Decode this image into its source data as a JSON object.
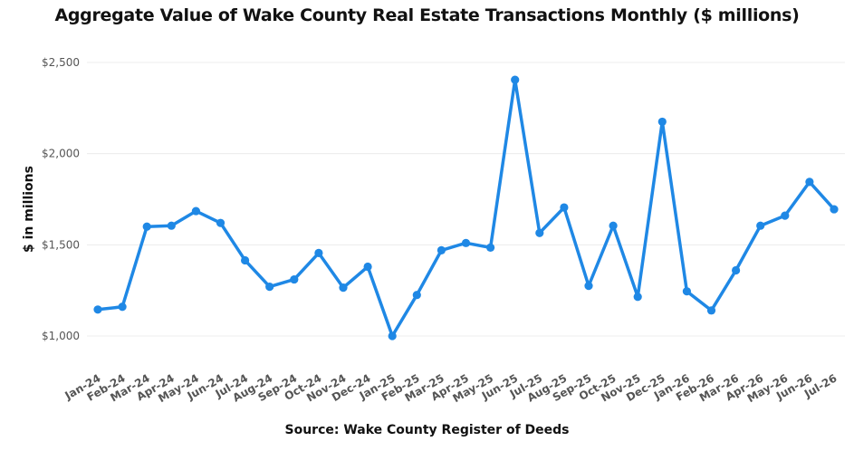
{
  "chart_data": {
    "type": "line",
    "title": "Aggregate Value of Wake County Real Estate Transactions Monthly ($ millions)",
    "ylabel": "$ in millions",
    "xlabel": "Source: Wake County Register of Deeds",
    "ylim": [
      900,
      2550
    ],
    "yticks": [
      1000,
      1500,
      2000,
      2500
    ],
    "ytick_labels": [
      "$1,000",
      "$1,500",
      "$2,000",
      "$2,500"
    ],
    "grid": true,
    "line_color": "#1f88e5",
    "categories": [
      "Jan-24",
      "Feb-24",
      "Mar-24",
      "Apr-24",
      "May-24",
      "Jun-24",
      "Jul-24",
      "Aug-24",
      "Sep-24",
      "Oct-24",
      "Nov-24",
      "Dec-24",
      "Jan-25",
      "Feb-25",
      "Mar-25",
      "Apr-25",
      "May-25",
      "Jun-25",
      "Jul-25",
      "Aug-25",
      "Sep-25",
      "Oct-25",
      "Nov-25",
      "Dec-25",
      "Jan-26",
      "Feb-26",
      "Mar-26",
      "Apr-26",
      "May-26",
      "Jun-26",
      "Jul-26"
    ],
    "values": [
      1145,
      1160,
      1600,
      1605,
      1685,
      1620,
      1415,
      1270,
      1310,
      1455,
      1265,
      1380,
      1000,
      1225,
      1470,
      1510,
      1485,
      2405,
      1565,
      1705,
      1275,
      1605,
      1215,
      2175,
      1245,
      1140,
      1360,
      1605,
      1660,
      1845,
      1695
    ]
  }
}
